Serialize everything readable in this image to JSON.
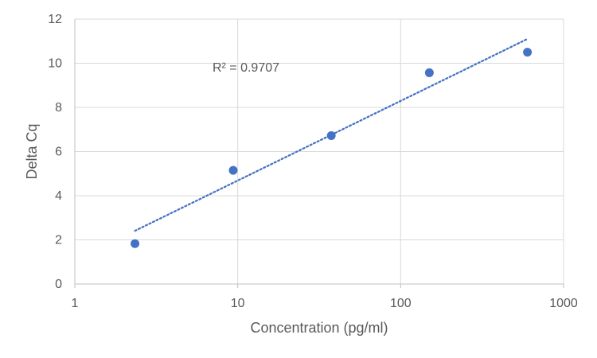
{
  "chart_data": {
    "type": "scatter",
    "title": "",
    "xlabel": "Concentration (pg/ml)",
    "ylabel": "Delta Cq",
    "x_scale": "log",
    "xlim": [
      1,
      1000
    ],
    "ylim": [
      0,
      12
    ],
    "x_ticks": [
      1,
      10,
      100,
      1000
    ],
    "y_ticks": [
      0,
      2,
      4,
      6,
      8,
      10,
      12
    ],
    "x_tick_labels": [
      "1",
      "10",
      "100",
      "1000"
    ],
    "y_tick_labels": [
      "0",
      "2",
      "4",
      "6",
      "8",
      "10",
      "12"
    ],
    "grid": true,
    "legend": "none",
    "colors": {
      "marker": "#4472C4",
      "trendline": "#4472C4",
      "grid": "#D9D9D9",
      "axis": "#BFBFBF",
      "text": "#595959"
    },
    "series": [
      {
        "name": "Delta Cq",
        "points": [
          {
            "x": 2.34,
            "y": 1.83
          },
          {
            "x": 9.38,
            "y": 5.15
          },
          {
            "x": 37.5,
            "y": 6.72
          },
          {
            "x": 150,
            "y": 9.57
          },
          {
            "x": 600,
            "y": 10.5
          }
        ]
      }
    ],
    "trendline": {
      "type": "logarithmic",
      "style": "dotted",
      "from": {
        "x": 2.34,
        "y": 2.41
      },
      "to": {
        "x": 600,
        "y": 11.1
      },
      "annotation": "R² = 0.9707",
      "annotation_anchor": {
        "x": 7,
        "y": 9.8
      }
    }
  }
}
